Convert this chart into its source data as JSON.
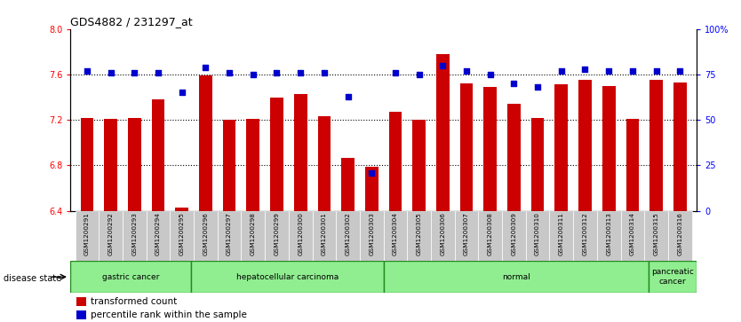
{
  "title": "GDS4882 / 231297_at",
  "samples": [
    "GSM1200291",
    "GSM1200292",
    "GSM1200293",
    "GSM1200294",
    "GSM1200295",
    "GSM1200296",
    "GSM1200297",
    "GSM1200298",
    "GSM1200299",
    "GSM1200300",
    "GSM1200301",
    "GSM1200302",
    "GSM1200303",
    "GSM1200304",
    "GSM1200305",
    "GSM1200306",
    "GSM1200307",
    "GSM1200308",
    "GSM1200309",
    "GSM1200310",
    "GSM1200311",
    "GSM1200312",
    "GSM1200313",
    "GSM1200314",
    "GSM1200315",
    "GSM1200316"
  ],
  "bar_values": [
    7.22,
    7.21,
    7.22,
    7.38,
    6.43,
    7.59,
    7.2,
    7.21,
    7.4,
    7.43,
    7.23,
    6.87,
    6.79,
    7.27,
    7.2,
    7.78,
    7.52,
    7.49,
    7.34,
    7.22,
    7.51,
    7.55,
    7.5,
    7.21,
    7.55,
    7.53
  ],
  "percentile_values": [
    77,
    76,
    76,
    76,
    65,
    79,
    76,
    75,
    76,
    76,
    76,
    63,
    21,
    76,
    75,
    80,
    77,
    75,
    70,
    68,
    77,
    78,
    77,
    77,
    77,
    77
  ],
  "ylim_left": [
    6.4,
    8.0
  ],
  "ylim_right": [
    0,
    100
  ],
  "yticks_left": [
    6.4,
    6.8,
    7.2,
    7.6,
    8.0
  ],
  "yticks_right": [
    0,
    25,
    50,
    75,
    100
  ],
  "ytick_labels_right": [
    "0",
    "25",
    "50",
    "75",
    "100%"
  ],
  "grid_values": [
    7.6,
    7.2,
    6.8
  ],
  "bar_color": "#CC0000",
  "dot_color": "#0000CC",
  "groups": [
    {
      "label": "gastric cancer",
      "start": 0,
      "end": 5
    },
    {
      "label": "hepatocellular carcinoma",
      "start": 5,
      "end": 13
    },
    {
      "label": "normal",
      "start": 13,
      "end": 24
    },
    {
      "label": "pancreatic\ncancer",
      "start": 24,
      "end": 26
    }
  ],
  "group_color": "#90EE90",
  "group_border_color": "#228B22",
  "disease_state_label": "disease state",
  "xtick_bg_color": "#C8C8C8",
  "legend_red_label": "transformed count",
  "legend_blue_label": "percentile rank within the sample"
}
